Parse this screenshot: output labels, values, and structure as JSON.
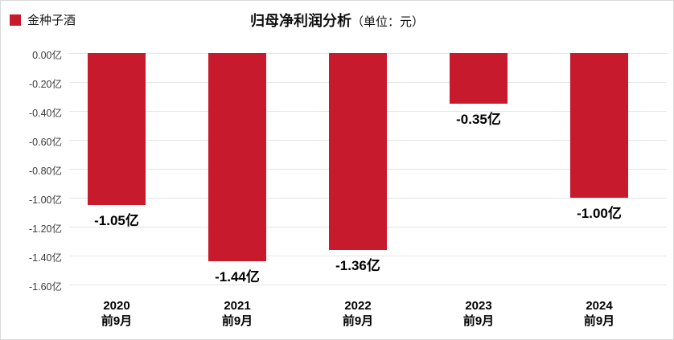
{
  "legend": {
    "label": "金种子酒"
  },
  "title": {
    "main": "归母净利润分析",
    "unit": "（单位：元）"
  },
  "colors": {
    "bar": "#C81A2D",
    "legend_swatch": "#C81A2D",
    "gridline": "#e4e4e4",
    "title_text": "#111111",
    "value_label": "#000000",
    "y_tick_text": "#3a3a3a"
  },
  "chart_data": {
    "type": "bar",
    "title": "归母净利润分析（单位：元）",
    "series_name": "金种子酒",
    "categories": [
      {
        "line1": "2020",
        "line2": "前9月"
      },
      {
        "line1": "2021",
        "line2": "前9月"
      },
      {
        "line1": "2022",
        "line2": "前9月"
      },
      {
        "line1": "2023",
        "line2": "前9月"
      },
      {
        "line1": "2024",
        "line2": "前9月"
      }
    ],
    "values_yi": [
      -1.05,
      -1.44,
      -1.36,
      -0.35,
      -1.0
    ],
    "value_labels": [
      "-1.05亿",
      "-1.44亿",
      "-1.36亿",
      "-0.35亿",
      "-1.00亿"
    ],
    "y_ticks": [
      "0.00亿",
      "-0.20亿",
      "-0.40亿",
      "-0.60亿",
      "-0.80亿",
      "-1.00亿",
      "-1.20亿",
      "-1.40亿",
      "-1.60亿"
    ],
    "ylim": [
      -1.6,
      0.0
    ],
    "unit": "元",
    "grid": true,
    "legend_position": "top-left",
    "bar_color": "#C81A2D"
  }
}
